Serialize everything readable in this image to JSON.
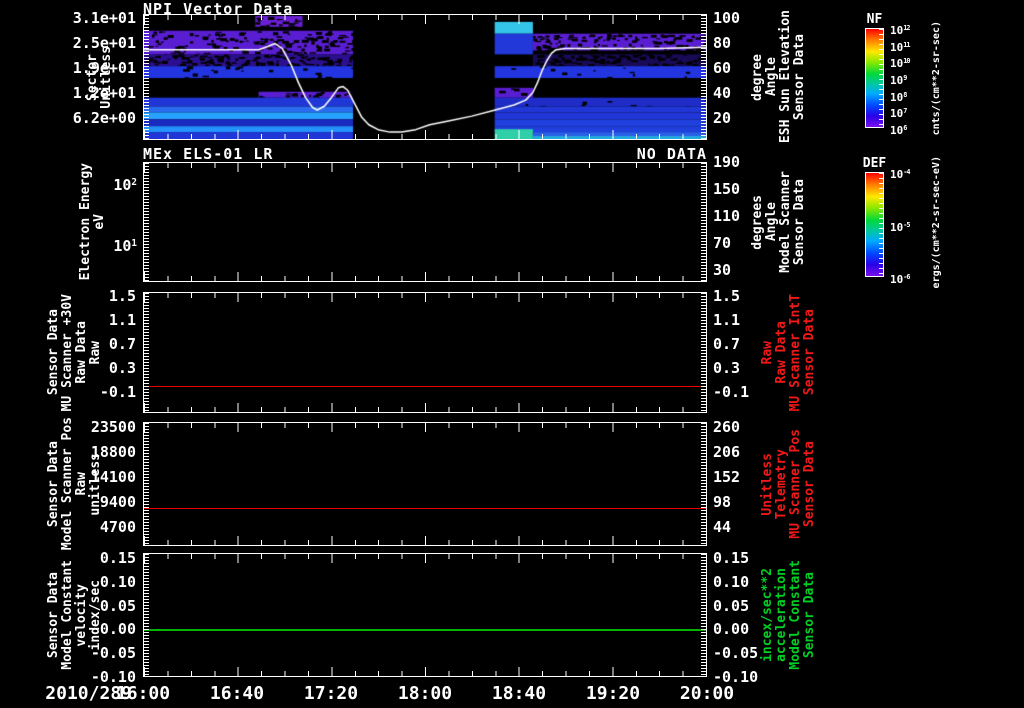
{
  "footer": {
    "date": "2010/289"
  },
  "x_axis": {
    "labels": [
      "16:00",
      "16:40",
      "17:20",
      "18:00",
      "18:40",
      "19:20",
      "20:00"
    ]
  },
  "panels": [
    {
      "title": "NPI Vector Data",
      "left_label_lines": [
        "Sector",
        "Unitless"
      ],
      "left_ticks": [
        "3.1e+01",
        "2.5e+01",
        "1.9e+01",
        "1.2e+01",
        "6.2e+00"
      ],
      "right_ticks": [
        "100",
        "80",
        "60",
        "40",
        "20"
      ],
      "right_label_lines": [
        "Sensor Data",
        "ESH Sun Elevation",
        "Angle",
        "degree"
      ]
    },
    {
      "title": "MEx ELS-01 LR",
      "status": "NO DATA",
      "left_label_lines": [
        "Electron Energy",
        "eV"
      ],
      "left_ticks": [
        "10^2",
        "10^1"
      ],
      "right_ticks": [
        "190",
        "150",
        "110",
        "70",
        "30"
      ],
      "right_label_lines": [
        "Sensor Data",
        "Model Scanner",
        "Angle",
        "degrees"
      ]
    },
    {
      "left_label_lines": [
        "Sensor Data",
        "MU Scanner +30V",
        "Raw Data",
        "Raw"
      ],
      "left_ticks": [
        "1.5",
        "1.1",
        "0.7",
        "0.3",
        "-0.1"
      ],
      "right_ticks": [
        "1.5",
        "1.1",
        "0.7",
        "0.3",
        "-0.1"
      ],
      "right_label_lines": [
        "Sensor Data",
        "MU Scanner IntT",
        "Raw Data",
        "Raw"
      ]
    },
    {
      "left_label_lines": [
        "Sensor Data",
        "Model Scanner Pos",
        "Raw",
        "unitless"
      ],
      "left_ticks": [
        "23500",
        "18800",
        "14100",
        "9400",
        "4700"
      ],
      "right_ticks": [
        "260",
        "206",
        "152",
        "98",
        "44"
      ],
      "right_label_lines": [
        "Sensor Data",
        "MU Scanner Pos",
        "Telemetry",
        "Unitless"
      ]
    },
    {
      "left_label_lines": [
        "Sensor Data",
        "Model Constant",
        "velocity",
        "index/sec"
      ],
      "left_ticks": [
        "0.15",
        "0.10",
        "0.05",
        "0.00",
        "-0.05",
        "-0.10"
      ],
      "right_ticks": [
        "0.15",
        "0.10",
        "0.05",
        "0.00",
        "-0.05",
        "-0.10"
      ],
      "right_label_lines": [
        "Sensor Data",
        "Model Constant",
        "acceleration",
        "incex/sec**2"
      ]
    }
  ],
  "colorbars": [
    {
      "name": "NF",
      "ticks": [
        "10^12",
        "10^11",
        "10^10",
        "10^9",
        "10^8",
        "10^7",
        "10^6"
      ],
      "units": "cnts/(cm**2-sr-sec)"
    },
    {
      "name": "DEF",
      "ticks": [
        "10^-4",
        "10^-5",
        "10^-6"
      ],
      "units": "ergs/(cm**2-sr-sec-eV)"
    }
  ],
  "chart_data": [
    {
      "type": "heatmap",
      "title": "NPI Vector Data",
      "date": "2010/289",
      "x_start": "16:00",
      "x_end": "20:00",
      "x_total_minutes": 240,
      "ylabel_left": "Sector Unitless",
      "ylabel_right": "Sensor Data ESH Sun Elevation Angle degree",
      "y_right_axis": {
        "min": 2.4,
        "max": 103.2,
        "ticks": [
          100,
          80,
          60,
          40,
          20
        ]
      },
      "y_left_ticks": [
        31,
        25,
        19,
        12,
        6.2
      ],
      "colorbar": {
        "name": "NF",
        "units": "cnts/(cm**2-sr-sec)",
        "range": [
          "10^6",
          "10^12"
        ]
      },
      "data_gap_minutes": [
        [
          89,
          150
        ]
      ],
      "line_series": {
        "name": "ESH Sun Elevation Angle",
        "color": "#ffffff",
        "points": [
          [
            0,
            75
          ],
          [
            20,
            75
          ],
          [
            40,
            75
          ],
          [
            49,
            75
          ],
          [
            52,
            77
          ],
          [
            56,
            80
          ],
          [
            59,
            76
          ],
          [
            63,
            62
          ],
          [
            66,
            48
          ],
          [
            69,
            36
          ],
          [
            72,
            28
          ],
          [
            74,
            26
          ],
          [
            77,
            29
          ],
          [
            80,
            36
          ],
          [
            83,
            44
          ],
          [
            85,
            45
          ],
          [
            87,
            42
          ],
          [
            90,
            31
          ],
          [
            93,
            20
          ],
          [
            96,
            14
          ],
          [
            100,
            10
          ],
          [
            105,
            8
          ],
          [
            110,
            8
          ],
          [
            116,
            10
          ],
          [
            122,
            14
          ],
          [
            130,
            17
          ],
          [
            140,
            21
          ],
          [
            150,
            26
          ],
          [
            158,
            30
          ],
          [
            163,
            34
          ],
          [
            166,
            40
          ],
          [
            168,
            48
          ],
          [
            170,
            58
          ],
          [
            172,
            66
          ],
          [
            174,
            72
          ],
          [
            176,
            75
          ],
          [
            180,
            76
          ],
          [
            190,
            76
          ],
          [
            205,
            76
          ],
          [
            220,
            76
          ],
          [
            240,
            77
          ]
        ]
      },
      "heatmap_bands": [
        {
          "y": [
            1,
            12
          ],
          "segs": [
            [
              0.198,
              0.282,
              "#6a1fd4",
              0.35
            ]
          ]
        },
        {
          "y": [
            7,
            19
          ],
          "segs": [
            [
              0.624,
              0.692,
              "#34c4ea",
              0
            ]
          ]
        },
        {
          "y": [
            16,
            40
          ],
          "segs": [
            [
              0.0,
              0.372,
              "#5a1ed2",
              0.3
            ]
          ]
        },
        {
          "y": [
            19,
            40
          ],
          "segs": [
            [
              0.624,
              0.692,
              "#2238d8",
              0
            ]
          ]
        },
        {
          "y": [
            19,
            36
          ],
          "segs": [
            [
              0.692,
              1.0,
              "#5a1ed2",
              0.45
            ]
          ]
        },
        {
          "y": [
            40,
            52
          ],
          "segs": [
            [
              0.0,
              0.372,
              "#2c0f8e",
              0.55
            ],
            [
              0.692,
              1.0,
              "#180a55",
              0.5
            ]
          ]
        },
        {
          "y": [
            52,
            64
          ],
          "segs": [
            [
              0.0,
              0.372,
              "#2335e0",
              0.08
            ],
            [
              0.624,
              1.0,
              "#2335e0",
              0.05
            ]
          ]
        },
        {
          "y": [
            78,
            84
          ],
          "segs": [
            [
              0.204,
              0.372,
              "#5a1ed2",
              0.4
            ]
          ]
        },
        {
          "y": [
            74,
            84
          ],
          "segs": [
            [
              0.624,
              0.692,
              "#5a1ed2",
              0.1
            ]
          ]
        },
        {
          "y": [
            84,
            93
          ],
          "segs": [
            [
              0.0,
              0.372,
              "#2136d6",
              0
            ],
            [
              0.624,
              1.0,
              "#1f2cc8",
              0.05
            ]
          ]
        },
        {
          "y": [
            93,
            99
          ],
          "segs": [
            [
              0.0,
              0.372,
              "#2a6cf0",
              0
            ],
            [
              0.624,
              1.0,
              "#2136d6",
              0
            ]
          ]
        },
        {
          "y": [
            99,
            106
          ],
          "segs": [
            [
              0.0,
              0.372,
              "#28a2ff",
              0
            ],
            [
              0.624,
              1.0,
              "#2136d6",
              0
            ]
          ]
        },
        {
          "y": [
            106,
            113
          ],
          "segs": [
            [
              0.0,
              0.372,
              "#1a2ac0",
              0
            ],
            [
              0.624,
              1.0,
              "#2040dd",
              0
            ]
          ]
        },
        {
          "y": [
            113,
            119
          ],
          "segs": [
            [
              0.0,
              0.372,
              "#2492ff",
              0
            ],
            [
              0.624,
              1.0,
              "#2040dd",
              0
            ]
          ]
        },
        {
          "y": [
            116,
            126
          ],
          "segs": [
            [
              0.624,
              0.692,
              "#2fd0a8",
              0
            ]
          ]
        },
        {
          "y": [
            119,
            126
          ],
          "segs": [
            [
              0.0,
              0.372,
              "#2136d6",
              0
            ],
            [
              0.692,
              1.0,
              "#2a60e8",
              0
            ]
          ]
        },
        {
          "y": [
            123,
            126
          ],
          "segs": [
            [
              0.692,
              1.0,
              "#22aadd",
              0
            ]
          ]
        }
      ]
    },
    {
      "type": "spectrogram",
      "title": "MEx ELS-01 LR",
      "status": "NO DATA",
      "ylabel_left": "Electron Energy eV",
      "ylabel_right": "Sensor Data Model Scanner Angle degrees",
      "colorbar": {
        "name": "DEF",
        "units": "ergs/(cm**2-sr-sec-eV)",
        "range": [
          "10^-6",
          "10^-4"
        ]
      }
    },
    {
      "type": "hline",
      "label": "Sensor Data MU Scanner +30V / IntT Raw Data Raw",
      "value": 0.0,
      "axis": {
        "min": -0.45,
        "max": 1.57
      },
      "color": "#e80000"
    },
    {
      "type": "hline",
      "label": "Sensor Data Model Scanner Pos Raw / MU Scanner Pos Telemetry",
      "value": 8300,
      "axis": {
        "min": 1130,
        "max": 24440
      },
      "color": "#e80000"
    },
    {
      "type": "hline",
      "label": "Sensor Data Model Constant velocity / acceleration",
      "value": 0.0,
      "axis": {
        "min": -0.1,
        "max": 0.1605
      },
      "color": "#00b400"
    }
  ]
}
